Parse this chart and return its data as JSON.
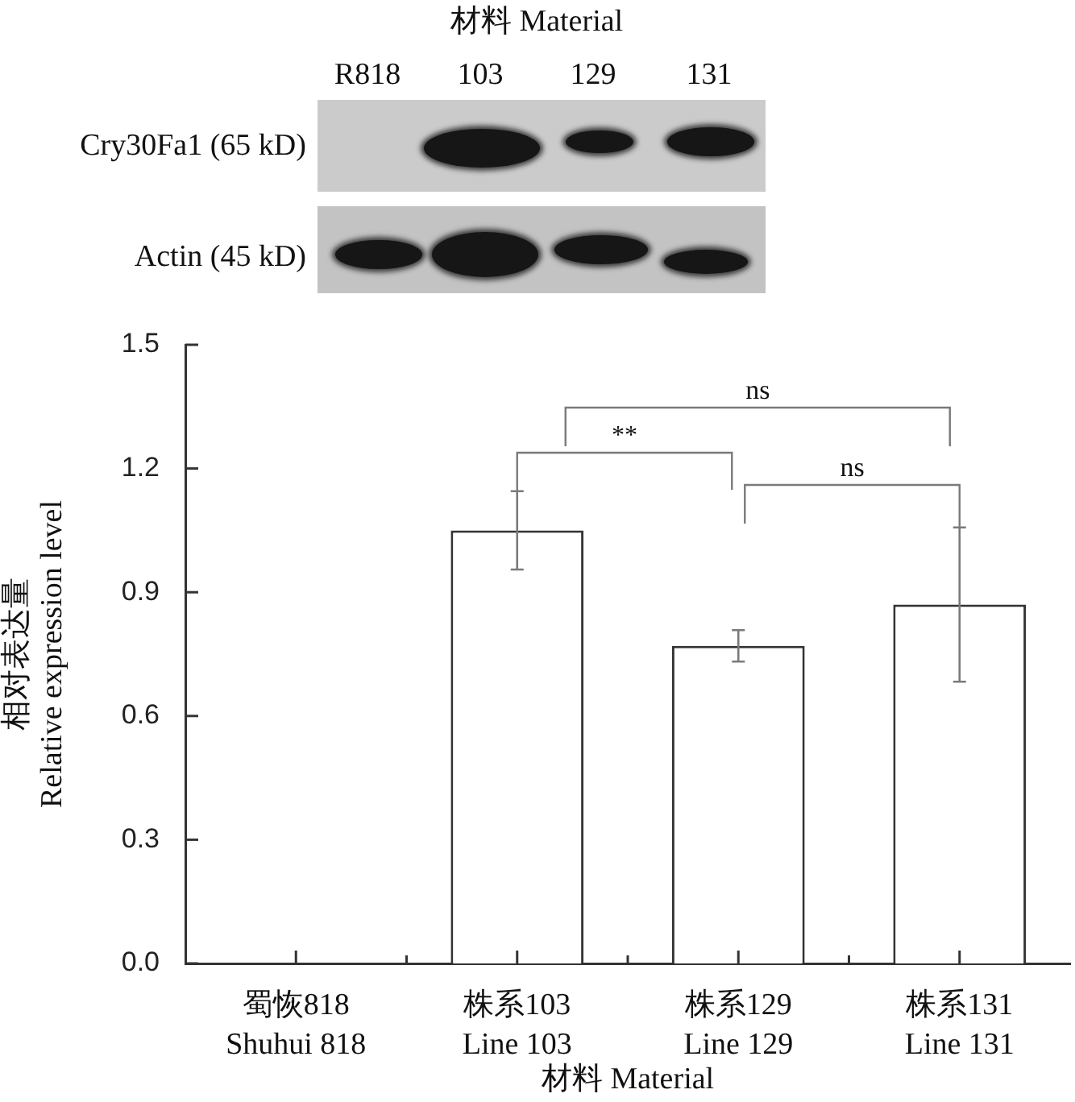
{
  "chart_data": {
    "type": "bar",
    "categories": [
      "蜀恢818\nShuhui 818",
      "株系103\nLine 103",
      "株系129\nLine 129",
      "株系131\nLine 131"
    ],
    "values": [
      0,
      1.05,
      0.77,
      0.87
    ],
    "errors": [
      null,
      0.095,
      0.038,
      0.187
    ],
    "color": "#ffffff",
    "xlabel": "材料 Material",
    "ylabel": "相对表达量\nRelative expression level",
    "ylim": [
      0,
      1.5
    ],
    "yticks": [
      {
        "value": 0,
        "label": "0.0"
      },
      0.3,
      0.6,
      0.9,
      1.2,
      1.5
    ],
    "annotations": [
      "材料 Material",
      "R818",
      "103",
      "129",
      "131",
      "Cry30Fa1 (65 kD)",
      "Actin (45 kD)",
      "**",
      "ns",
      "ns"
    ]
  }
}
